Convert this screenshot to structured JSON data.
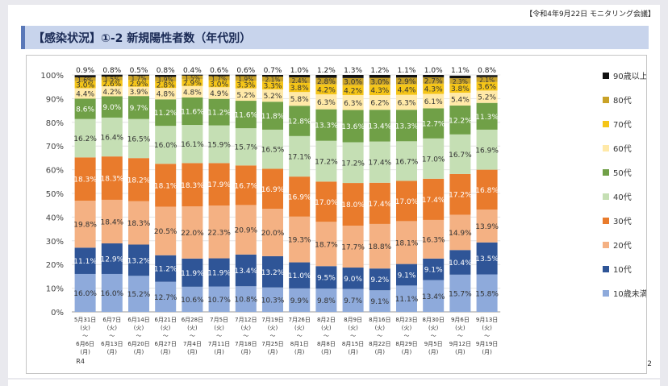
{
  "header": {
    "meeting": "【令和4年9月22日 モニタリング会議】",
    "title": "【感染状況】①-2 新規陽性者数（年代別）",
    "page_number": "2"
  },
  "chart_data": {
    "type": "bar",
    "stacked": true,
    "title": "新規陽性者数（年代別）",
    "ylim": [
      0,
      100
    ],
    "yticks": [
      "0%",
      "10%",
      "20%",
      "30%",
      "40%",
      "50%",
      "60%",
      "70%",
      "80%",
      "90%",
      "100%"
    ],
    "categories": [
      {
        "start": "5月31日",
        "sd": "(火)",
        "tilde": "〜",
        "end": "6月6日",
        "ed": "(月)",
        "extra": "R4"
      },
      {
        "start": "6月7日",
        "sd": "(火)",
        "tilde": "〜",
        "end": "6月13日",
        "ed": "(月)",
        "extra": ""
      },
      {
        "start": "6月14日",
        "sd": "(火)",
        "tilde": "〜",
        "end": "6月20日",
        "ed": "(月)",
        "extra": ""
      },
      {
        "start": "6月21日",
        "sd": "(火)",
        "tilde": "〜",
        "end": "6月27日",
        "ed": "(月)",
        "extra": ""
      },
      {
        "start": "6月28日",
        "sd": "(火)",
        "tilde": "〜",
        "end": "7月4日",
        "ed": "(月)",
        "extra": ""
      },
      {
        "start": "7月5日",
        "sd": "(火)",
        "tilde": "〜",
        "end": "7月11日",
        "ed": "(月)",
        "extra": ""
      },
      {
        "start": "7月12日",
        "sd": "(火)",
        "tilde": "〜",
        "end": "7月18日",
        "ed": "(月)",
        "extra": ""
      },
      {
        "start": "7月19日",
        "sd": "(火)",
        "tilde": "〜",
        "end": "7月25日",
        "ed": "(月)",
        "extra": ""
      },
      {
        "start": "7月26日",
        "sd": "(火)",
        "tilde": "〜",
        "end": "8月1日",
        "ed": "(月)",
        "extra": ""
      },
      {
        "start": "8月2日",
        "sd": "(火)",
        "tilde": "〜",
        "end": "8月8日",
        "ed": "(月)",
        "extra": ""
      },
      {
        "start": "8月9日",
        "sd": "(火)",
        "tilde": "〜",
        "end": "8月15日",
        "ed": "(月)",
        "extra": ""
      },
      {
        "start": "8月16日",
        "sd": "(火)",
        "tilde": "〜",
        "end": "8月22日",
        "ed": "(月)",
        "extra": ""
      },
      {
        "start": "8月23日",
        "sd": "(火)",
        "tilde": "〜",
        "end": "8月29日",
        "ed": "(月)",
        "extra": ""
      },
      {
        "start": "8月30日",
        "sd": "(火)",
        "tilde": "〜",
        "end": "9月5日",
        "ed": "(月)",
        "extra": ""
      },
      {
        "start": "9月6日",
        "sd": "(火)",
        "tilde": "〜",
        "end": "9月12日",
        "ed": "(月)",
        "extra": ""
      },
      {
        "start": "9月13日",
        "sd": "(火)",
        "tilde": "〜",
        "end": "9月19日",
        "ed": "(月)",
        "extra": ""
      }
    ],
    "series": [
      {
        "name": "10歳未満",
        "color": "#8eaadb",
        "labels": [
          "16.0%",
          "16.0%",
          "15.2%",
          "12.7%",
          "10.6%",
          "10.7%",
          "10.8%",
          "10.3%",
          "9.9%",
          "9.8%",
          "9.7%",
          "9.1%",
          "11.1%",
          "13.4%",
          "15.7%",
          "15.8%"
        ],
        "values": [
          16.0,
          16.0,
          15.2,
          12.7,
          10.6,
          10.7,
          10.8,
          10.3,
          9.9,
          9.8,
          9.7,
          9.1,
          11.1,
          13.4,
          15.7,
          15.8
        ]
      },
      {
        "name": "10代",
        "color": "#2f5597",
        "labels": [
          "11.1%",
          "12.9%",
          "13.2%",
          "11.2%",
          "11.9%",
          "11.9%",
          "13.4%",
          "13.2%",
          "11.0%",
          "9.5%",
          "9.0%",
          "9.2%",
          "9.1%",
          "9.1%",
          "10.4%",
          "13.5%"
        ],
        "values": [
          11.1,
          12.9,
          13.2,
          11.2,
          11.9,
          11.9,
          13.4,
          13.2,
          11.0,
          9.5,
          9.0,
          9.2,
          9.1,
          9.1,
          10.4,
          13.5
        ]
      },
      {
        "name": "20代",
        "color": "#f4b183",
        "labels": [
          "19.8%",
          "18.4%",
          "18.3%",
          "20.5%",
          "22.0%",
          "22.3%",
          "20.9%",
          "20.0%",
          "19.3%",
          "18.7%",
          "17.7%",
          "18.8%",
          "18.1%",
          "16.3%",
          "14.9%",
          "13.9%"
        ],
        "values": [
          19.8,
          18.4,
          18.3,
          20.5,
          22.0,
          22.3,
          20.9,
          20.0,
          19.3,
          18.7,
          17.7,
          18.8,
          18.1,
          16.3,
          14.9,
          13.9
        ]
      },
      {
        "name": "30代",
        "color": "#e97b2c",
        "labels": [
          "18.3%",
          "18.3%",
          "18.2%",
          "18.1%",
          "18.3%",
          "17.9%",
          "16.7%",
          "16.9%",
          "16.9%",
          "17.0%",
          "18.0%",
          "17.4%",
          "17.0%",
          "17.4%",
          "17.2%",
          "16.8%"
        ],
        "values": [
          18.3,
          18.3,
          18.2,
          18.1,
          18.3,
          17.9,
          16.7,
          16.9,
          16.9,
          17.0,
          18.0,
          17.4,
          17.0,
          17.4,
          17.2,
          16.8
        ]
      },
      {
        "name": "40代",
        "color": "#c5dfb4",
        "labels": [
          "16.2%",
          "16.4%",
          "16.5%",
          "16.0%",
          "16.1%",
          "15.9%",
          "15.7%",
          "16.5%",
          "17.1%",
          "17.2%",
          "17.2%",
          "17.4%",
          "16.7%",
          "17.0%",
          "16.7%",
          "16.9%"
        ],
        "values": [
          16.2,
          16.4,
          16.5,
          16.0,
          16.1,
          15.9,
          15.7,
          16.5,
          17.1,
          17.2,
          17.2,
          17.4,
          16.7,
          17.0,
          16.7,
          16.9
        ]
      },
      {
        "name": "50代",
        "color": "#70a047",
        "labels": [
          "8.6%",
          "9.0%",
          "9.7%",
          "11.2%",
          "11.6%",
          "11.2%",
          "11.6%",
          "11.8%",
          "12.8%",
          "13.3%",
          "13.6%",
          "13.4%",
          "13.3%",
          "12.7%",
          "12.2%",
          "11.3%"
        ],
        "values": [
          8.6,
          9.0,
          9.7,
          11.2,
          11.6,
          11.2,
          11.6,
          11.8,
          12.8,
          13.3,
          13.6,
          13.4,
          13.3,
          12.7,
          12.2,
          11.3
        ]
      },
      {
        "name": "60代",
        "color": "#ffe9a8",
        "labels": [
          "4.4%",
          "4.2%",
          "3.9%",
          "4.8%",
          "4.8%",
          "4.9%",
          "5.2%",
          "5.2%",
          "5.8%",
          "6.3%",
          "6.3%",
          "6.2%",
          "6.3%",
          "6.1%",
          "5.4%",
          "5.2%"
        ],
        "values": [
          4.4,
          4.2,
          3.9,
          4.8,
          4.8,
          4.9,
          5.2,
          5.2,
          5.8,
          6.3,
          6.3,
          6.2,
          6.3,
          6.1,
          5.4,
          5.2
        ]
      },
      {
        "name": "70代",
        "color": "#f5c518",
        "labels": [
          "3.0%",
          "2.6%",
          "2.9%",
          "2.8%",
          "2.9%",
          "3.0%",
          "3.3%",
          "3.3%",
          "3.8%",
          "4.2%",
          "4.2%",
          "4.3%",
          "4.4%",
          "4.3%",
          "3.8%",
          "3.6%"
        ],
        "values": [
          3.0,
          2.6,
          2.9,
          2.8,
          2.9,
          3.0,
          3.3,
          3.3,
          3.8,
          4.2,
          4.2,
          4.3,
          4.4,
          4.3,
          3.8,
          3.6
        ]
      },
      {
        "name": "80代",
        "color": "#c9a227",
        "labels": [
          "1.6%",
          "1.5%",
          "1.7%",
          "1.9%",
          "1.5%",
          "1.7%",
          "1.9%",
          "2.1%",
          "2.4%",
          "2.8%",
          "3.0%",
          "3.0%",
          "2.9%",
          "2.7%",
          "2.3%",
          "2.1%"
        ],
        "values": [
          1.6,
          1.5,
          1.7,
          1.9,
          1.5,
          1.7,
          1.9,
          2.1,
          2.4,
          2.8,
          3.0,
          3.0,
          2.9,
          2.7,
          2.3,
          2.1
        ]
      },
      {
        "name": "90歳以上",
        "color": "#111111",
        "labels": [
          "0.9%",
          "0.8%",
          "0.5%",
          "0.8%",
          "0.4%",
          "0.6%",
          "0.6%",
          "0.7%",
          "1.0%",
          "1.2%",
          "1.3%",
          "1.2%",
          "1.1%",
          "1.0%",
          "1.1%",
          "0.8%"
        ],
        "values": [
          0.9,
          0.8,
          0.5,
          0.8,
          0.4,
          0.6,
          0.6,
          0.7,
          1.0,
          1.2,
          1.3,
          1.2,
          1.1,
          1.0,
          1.1,
          0.8
        ]
      }
    ]
  }
}
